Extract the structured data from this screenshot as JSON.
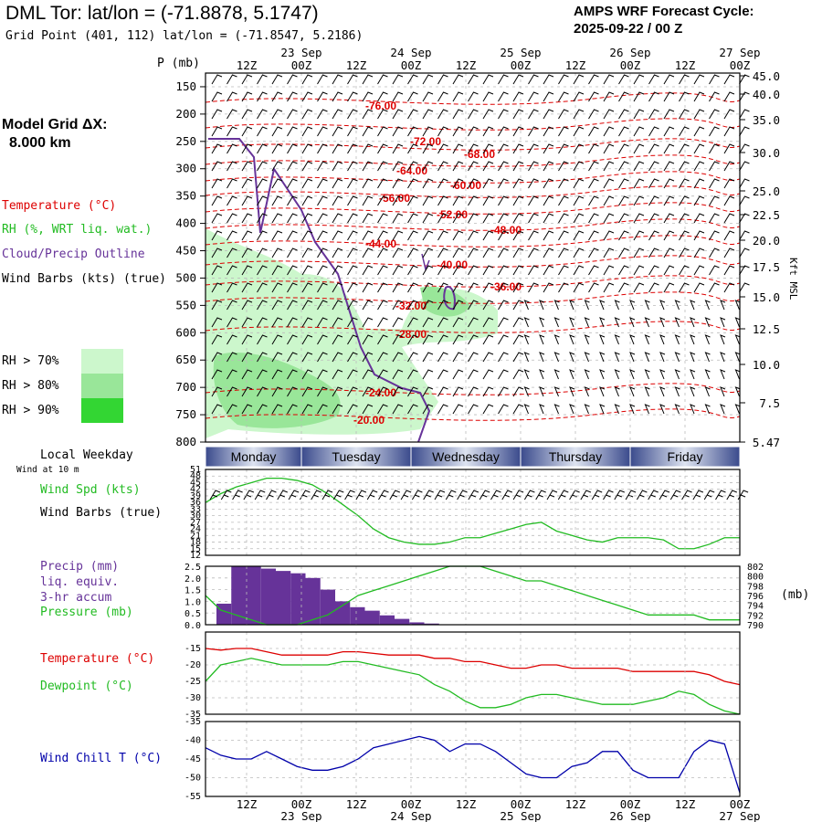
{
  "header": {
    "title": "DML Tor:  lat/lon = (-71.8878, 5.1747)",
    "subtitle": "Grid Point (401, 112) lat/lon = (-71.8547, 5.2186)",
    "cycle_line1": "AMPS WRF Forecast Cycle:",
    "cycle_line2": "2025-09-22 / 00  Z",
    "model_grid_line1": "Model Grid ΔX:",
    "model_grid_line2": "8.000 km"
  },
  "time_axis": {
    "hour_labels": [
      "12Z",
      "00Z",
      "12Z",
      "00Z",
      "12Z",
      "00Z",
      "12Z",
      "00Z",
      "12Z",
      "00Z"
    ],
    "date_labels": [
      "23 Sep",
      "24 Sep",
      "25 Sep",
      "26 Sep",
      "27 Sep"
    ],
    "weekdays": [
      "Monday",
      "Tuesday",
      "Wednesday",
      "Thursday",
      "Friday"
    ],
    "weekday_title": "Local Weekday"
  },
  "legend": {
    "pressure_unit": "P (mb)",
    "temperature": "Temperature (°C)",
    "rh": "RH (%, WRT liq. wat.)",
    "cloud": "Cloud/Precip Outline",
    "wind_barbs": "Wind Barbs (kts) (true)",
    "rh_levels": [
      {
        "label": "RH > 70%",
        "color": "#ccf7cc"
      },
      {
        "label": "RH > 80%",
        "color": "#99e699"
      },
      {
        "label": "RH > 90%",
        "color": "#33d633"
      }
    ],
    "height_unit": "Kft MSL"
  },
  "colors": {
    "temperature": "#dd0000",
    "rh_green": "#22bb22",
    "cloud_outline": "#663399",
    "wind_chill": "#0000aa",
    "precip_bar": "#663399",
    "weekday_band_dark": "#3a4a8c",
    "weekday_band_light": "#dde3f0"
  },
  "chart_data": [
    {
      "type": "heatmap",
      "name": "cross-section",
      "pressure_ticks": [
        150,
        200,
        250,
        300,
        350,
        400,
        450,
        500,
        550,
        600,
        650,
        700,
        750,
        800
      ],
      "height_ticks": [
        "45.0",
        "40.0",
        "35.0",
        "30.0",
        "25.0",
        "22.5",
        "20.0",
        "17.5",
        "15.0",
        "12.5",
        "10.0",
        "7.5",
        "5.47"
      ],
      "isotherm_labels": [
        "-76.00",
        "-72.00",
        "-68.00",
        "-64.00",
        "-60.00",
        "-56.00",
        "-52.00",
        "-48.00",
        "-44.00",
        "-40.00",
        "-36.00",
        "-32.00",
        "-28.00",
        "-24.00",
        "-20.00"
      ],
      "ylim": [
        800,
        125
      ]
    },
    {
      "type": "line",
      "name": "wind",
      "title_lines": [
        "Wind at 10 m"
      ],
      "series": [
        {
          "name": "Wind Spd (kts)",
          "color": "#22bb22",
          "values": [
            36,
            40,
            43,
            45,
            47,
            47,
            46,
            44,
            40,
            35,
            30,
            24,
            20,
            18,
            17,
            17,
            18,
            20,
            20,
            22,
            24,
            26,
            27,
            23,
            21,
            19,
            18,
            20,
            20,
            20,
            19,
            15,
            15,
            17,
            20,
            20
          ]
        }
      ],
      "label2": "Wind Barbs (true)",
      "yticks": [
        51,
        48,
        45,
        42,
        39,
        36,
        33,
        30,
        27,
        24,
        21,
        18,
        15,
        12
      ],
      "ylim": [
        12,
        51
      ]
    },
    {
      "type": "bar",
      "name": "precip-pressure",
      "series": [
        {
          "name": "Precip (mm)",
          "label_lines": [
            "liq. equiv.",
            "3-hr accum"
          ],
          "color": "#663399",
          "values": [
            0.9,
            2.5,
            2.5,
            2.4,
            2.3,
            2.2,
            2.0,
            1.5,
            1.0,
            0.75,
            0.6,
            0.4,
            0.25,
            0.1,
            0.05,
            0,
            0,
            0,
            0,
            0,
            0,
            0,
            0,
            0,
            0,
            0,
            0,
            0,
            0,
            0,
            0,
            0,
            0,
            0,
            0,
            0
          ]
        },
        {
          "name": "Pressure (mb)",
          "color": "#22bb22",
          "values": [
            796,
            793,
            792,
            791,
            790,
            790,
            790,
            791,
            792,
            794,
            796,
            797,
            798,
            799,
            800,
            801,
            802,
            802,
            802,
            801,
            800,
            799,
            799,
            798,
            797,
            796,
            795,
            794,
            793,
            792,
            792,
            792,
            792,
            791,
            791,
            791
          ]
        }
      ],
      "precip_ticks": [
        "2.5",
        "2.0",
        "1.5",
        "1.0",
        "0.5",
        "0.0"
      ],
      "pressure_ticks": [
        802,
        800,
        798,
        796,
        794,
        792,
        790
      ],
      "pressure_unit": "(mb)",
      "ylim_precip": [
        0,
        2.5
      ],
      "ylim_pressure": [
        790,
        802
      ]
    },
    {
      "type": "line",
      "name": "temperature-dewpoint",
      "series": [
        {
          "name": "Temperature (°C)",
          "color": "#dd0000",
          "values": [
            -15,
            -15.5,
            -15,
            -15,
            -16,
            -17,
            -17,
            -17,
            -17,
            -16,
            -16,
            -16.5,
            -17,
            -17,
            -17,
            -18,
            -18,
            -19,
            -19,
            -20,
            -21,
            -21,
            -20,
            -20,
            -21,
            -21,
            -21,
            -21,
            -22,
            -22,
            -22,
            -22,
            -22,
            -23,
            -25,
            -26
          ]
        },
        {
          "name": "Dewpoint (°C)",
          "color": "#22bb22",
          "values": [
            -25,
            -20,
            -19,
            -18,
            -19,
            -20,
            -20,
            -20,
            -20,
            -19,
            -19,
            -20,
            -21,
            -22,
            -23,
            -26,
            -28,
            -31,
            -33,
            -33,
            -32,
            -30,
            -29,
            -29,
            -30,
            -31,
            -32,
            -32,
            -32,
            -31,
            -30,
            -28,
            -29,
            -32,
            -34,
            -35
          ]
        }
      ],
      "yticks": [
        -15,
        -20,
        -25,
        -30,
        -35
      ],
      "ylim": [
        -35,
        -10
      ]
    },
    {
      "type": "line",
      "name": "wind-chill",
      "series": [
        {
          "name": "Wind Chill T (°C)",
          "color": "#0000aa",
          "values": [
            -42,
            -44,
            -45,
            -45,
            -43,
            -45,
            -47,
            -48,
            -48,
            -47,
            -45,
            -42,
            -41,
            -40,
            -39,
            -40,
            -43,
            -41,
            -41,
            -43,
            -46,
            -49,
            -50,
            -50,
            -47,
            -46,
            -43,
            -43,
            -48,
            -50,
            -50,
            -50,
            -43,
            -40,
            -41,
            -54
          ]
        }
      ],
      "yticks": [
        -35,
        -40,
        -45,
        -50,
        -55
      ],
      "ylim": [
        -55,
        -35
      ]
    }
  ]
}
